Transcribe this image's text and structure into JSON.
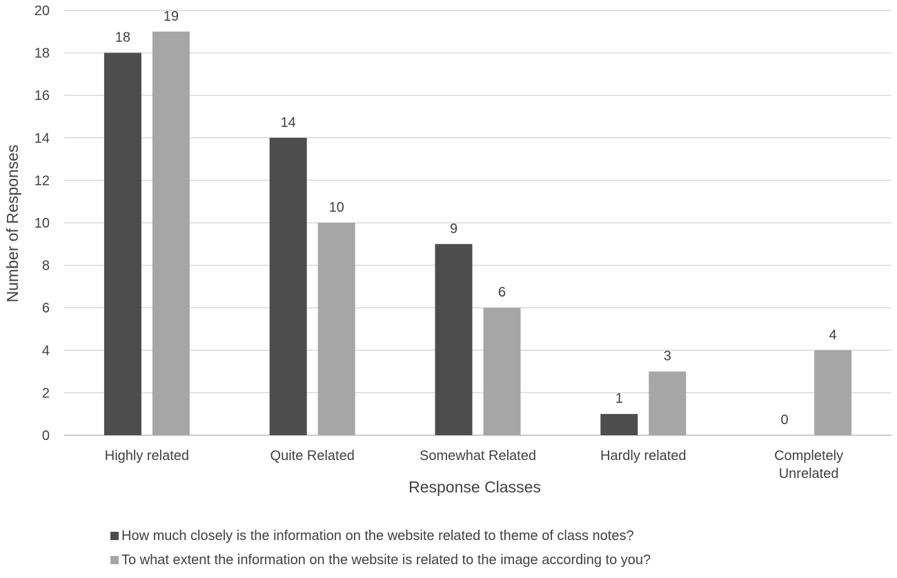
{
  "chart_data": {
    "type": "bar",
    "categories": [
      "Highly related",
      "Quite Related",
      "Somewhat Related",
      "Hardly related",
      "Completely Unrelated"
    ],
    "category_lines": [
      [
        "Highly related"
      ],
      [
        "Quite Related"
      ],
      [
        "Somewhat Related"
      ],
      [
        "Hardly related"
      ],
      [
        "Completely",
        "Unrelated"
      ]
    ],
    "series": [
      {
        "name": "How much closely is the information on the website related to theme of class notes?",
        "values": [
          18,
          14,
          9,
          1,
          0
        ],
        "color": "#4d4d4d"
      },
      {
        "name": "To what extent the information on the website is related to the image according to you?",
        "values": [
          19,
          10,
          6,
          3,
          4
        ],
        "color": "#a6a6a6"
      }
    ],
    "xlabel": "Response Classes",
    "ylabel": "Number of Responses",
    "ylim": [
      0,
      20
    ],
    "yticks": [
      0,
      2,
      4,
      6,
      8,
      10,
      12,
      14,
      16,
      18,
      20
    ],
    "grid": true,
    "gridColor": "#d9d9d9",
    "legend_position": "bottom"
  }
}
